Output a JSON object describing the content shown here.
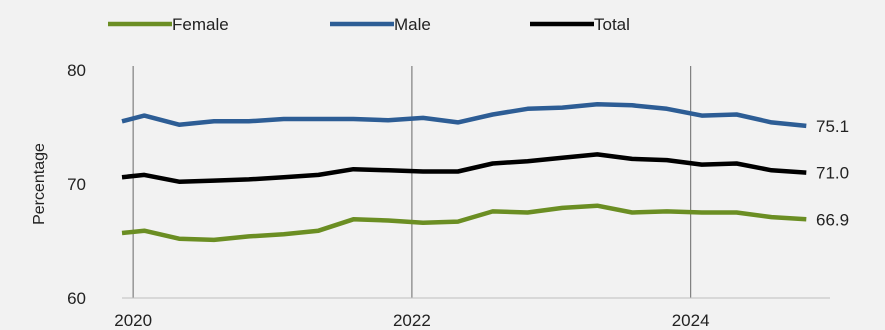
{
  "chart_data": {
    "type": "line",
    "title": "",
    "xlabel": "",
    "ylabel": "Percentage",
    "xlim": [
      2019.92,
      2025.0
    ],
    "ylim": [
      60,
      80
    ],
    "y_ticks": [
      60,
      70,
      80
    ],
    "x_ticks": [
      2020,
      2022,
      2024
    ],
    "vertical_gridlines_at": [
      2020,
      2022,
      2024
    ],
    "horizontal_grid": false,
    "legend_position": "top",
    "x": [
      2019.92,
      2020.08,
      2020.33,
      2020.58,
      2020.83,
      2021.08,
      2021.33,
      2021.58,
      2021.83,
      2022.08,
      2022.33,
      2022.58,
      2022.83,
      2023.08,
      2023.33,
      2023.58,
      2023.83,
      2024.08,
      2024.33,
      2024.58,
      2024.83
    ],
    "series": [
      {
        "name": "Female",
        "color": "#6b8e23",
        "values": [
          65.7,
          65.9,
          65.2,
          65.1,
          65.4,
          65.6,
          65.9,
          66.9,
          66.8,
          66.6,
          66.7,
          67.6,
          67.5,
          67.9,
          68.1,
          67.5,
          67.6,
          67.5,
          67.5,
          67.1,
          66.9
        ],
        "end_label": "66.9"
      },
      {
        "name": "Male",
        "color": "#2d5d95",
        "values": [
          75.5,
          76.0,
          75.2,
          75.5,
          75.5,
          75.7,
          75.7,
          75.7,
          75.6,
          75.8,
          75.4,
          76.1,
          76.6,
          76.7,
          77.0,
          76.9,
          76.6,
          76.0,
          76.1,
          75.4,
          75.1
        ],
        "end_label": "75.1"
      },
      {
        "name": "Total",
        "color": "#000000",
        "values": [
          70.6,
          70.8,
          70.2,
          70.3,
          70.4,
          70.6,
          70.8,
          71.3,
          71.2,
          71.1,
          71.1,
          71.8,
          72.0,
          72.3,
          72.6,
          72.2,
          72.1,
          71.7,
          71.8,
          71.2,
          71.0
        ],
        "end_label": "71.0"
      }
    ]
  }
}
